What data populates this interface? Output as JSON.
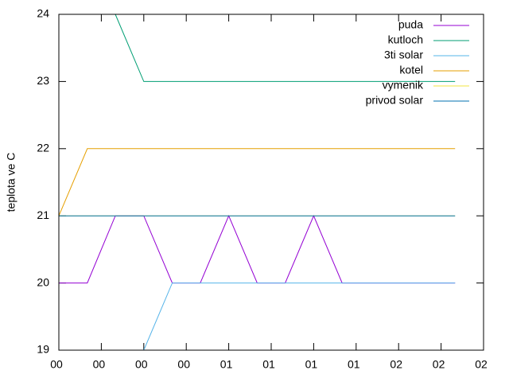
{
  "chart_data": {
    "type": "line",
    "y_label": "teplota ve C",
    "x": [
      0,
      0.67,
      1.33,
      2,
      2.67,
      3.33,
      4,
      4.67,
      5.33,
      6,
      6.67,
      7.33,
      8,
      8.67,
      9.33
    ],
    "series": [
      {
        "name": "puda",
        "color": "#9400d3",
        "values": [
          20,
          20,
          21,
          21,
          20,
          20,
          21,
          20,
          20,
          21,
          20,
          20,
          20,
          20,
          20
        ]
      },
      {
        "name": "kutloch",
        "color": "#009e73",
        "values": [
          null,
          null,
          24,
          23,
          23,
          23,
          23,
          23,
          23,
          23,
          23,
          23,
          23,
          23,
          23
        ]
      },
      {
        "name": "3ti solar",
        "color": "#56b4e9",
        "values": [
          null,
          null,
          null,
          19,
          20,
          20,
          20,
          20,
          20,
          20,
          20,
          20,
          20,
          20,
          20
        ]
      },
      {
        "name": "kotel",
        "color": "#e69f00",
        "values": [
          21,
          22,
          22,
          22,
          22,
          22,
          22,
          22,
          22,
          22,
          22,
          22,
          22,
          22,
          22
        ]
      },
      {
        "name": "vymenik",
        "color": "#f0e442",
        "values": [
          21,
          21,
          21,
          21,
          21,
          21,
          21,
          21,
          21,
          21,
          21,
          21,
          21,
          21,
          21
        ]
      },
      {
        "name": "privod solar",
        "color": "#0072b2",
        "values": [
          21,
          21,
          21,
          21,
          21,
          21,
          21,
          21,
          21,
          21,
          21,
          21,
          21,
          21,
          21
        ]
      }
    ],
    "xlim": [
      0,
      10
    ],
    "xticks": [
      {
        "value": 0,
        "label": "00"
      },
      {
        "value": 1,
        "label": "00"
      },
      {
        "value": 2,
        "label": "00"
      },
      {
        "value": 3,
        "label": "00"
      },
      {
        "value": 4,
        "label": "01"
      },
      {
        "value": 5,
        "label": "01"
      },
      {
        "value": 6,
        "label": "01"
      },
      {
        "value": 7,
        "label": "01"
      },
      {
        "value": 8,
        "label": "02"
      },
      {
        "value": 9,
        "label": "02"
      },
      {
        "value": 10,
        "label": "02"
      }
    ],
    "ylim": [
      19,
      24
    ],
    "yticks": [
      19,
      20,
      21,
      22,
      23,
      24
    ],
    "legend": "top-right"
  }
}
